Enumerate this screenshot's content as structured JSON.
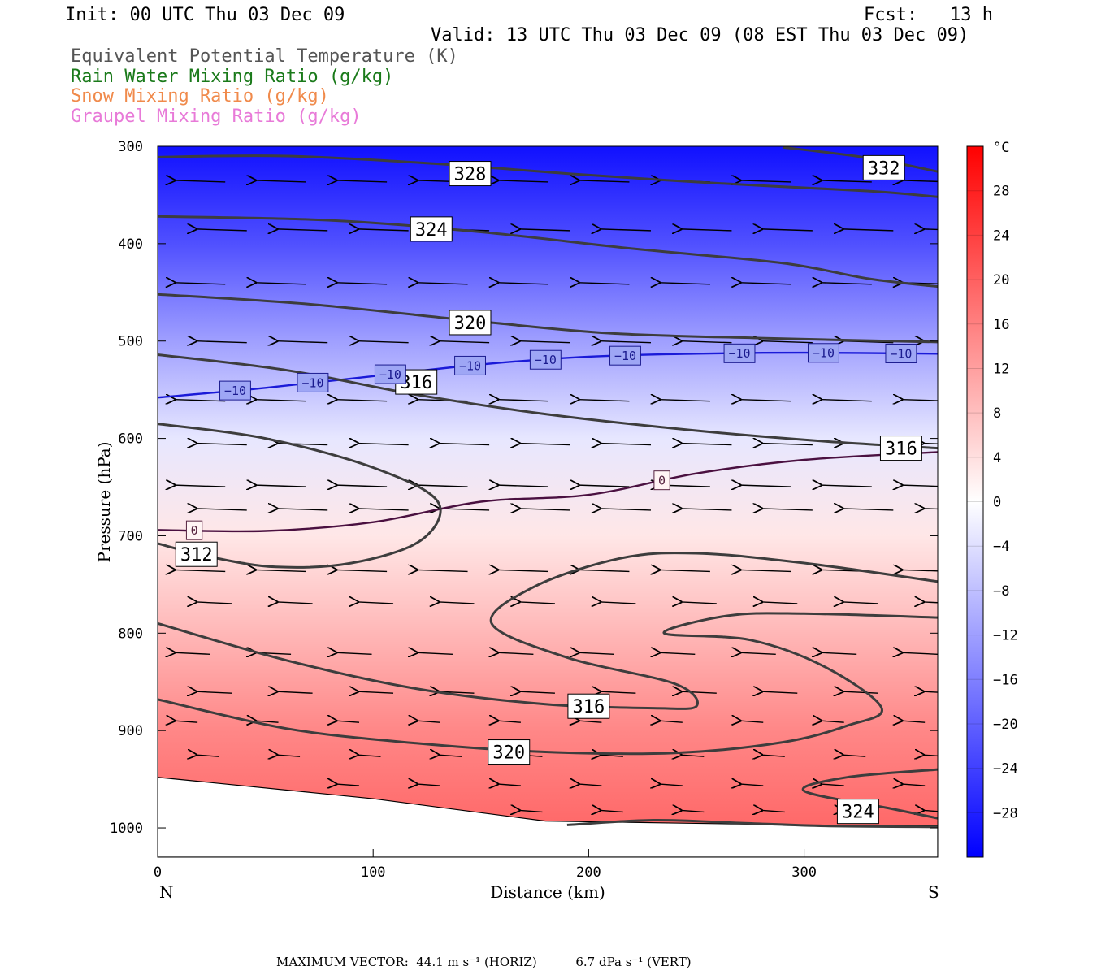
{
  "header": {
    "init": "Init: 00 UTC Thu 03 Dec 09",
    "fcst": "Fcst:   13 h",
    "valid": "Valid: 13 UTC Thu 03 Dec 09 (08 EST Thu 03 Dec 09)"
  },
  "legend_titles": [
    {
      "text": "Equivalent Potential Temperature (K)",
      "color": "#555555"
    },
    {
      "text": "Rain Water Mixing Ratio (g/kg)",
      "color": "#1a7a1a"
    },
    {
      "text": "Snow Mixing Ratio (g/kg)",
      "color": "#f08a4b"
    },
    {
      "text": "Graupel Mixing Ratio (g/kg)",
      "color": "#e87ad8"
    }
  ],
  "footer": {
    "label": "MAXIMUM VECTOR:",
    "horiz": "44.1 m s⁻¹ (HORIZ)",
    "vert": "6.7 dPa s⁻¹ (VERT)"
  },
  "chart_data": {
    "type": "heatmap",
    "description_fields": "filled temperature (degC) with theta-e contours (K), 0/-10 degC isotherms and wind vectors",
    "xlabel": "Distance (km)",
    "ylabel": "Pressure (hPa)",
    "xlim": [
      0,
      362
    ],
    "ylim": [
      1030,
      300
    ],
    "x_ticks": [
      0,
      100,
      200,
      300
    ],
    "y_ticks": [
      300,
      400,
      500,
      600,
      700,
      800,
      900,
      1000
    ],
    "x_end_labels": {
      "left": "N",
      "right": "S"
    },
    "colorbar": {
      "unit": "°C",
      "range": [
        -32,
        32
      ],
      "tick_values": [
        28,
        24,
        20,
        16,
        12,
        8,
        4,
        0,
        -4,
        -8,
        -12,
        -16,
        -20,
        -24,
        -28
      ],
      "tick_labels": [
        "28",
        "24",
        "20",
        "16",
        "12",
        "8",
        "4",
        "0",
        "−4",
        "−8",
        "−12",
        "−16",
        "−20",
        "−24",
        "−28"
      ],
      "cold_color": "#0000ff",
      "warm_color": "#ff0000"
    },
    "temperature_profile": [
      {
        "p": 300,
        "t": -30
      },
      {
        "p": 400,
        "t": -22
      },
      {
        "p": 500,
        "t": -12
      },
      {
        "p": 600,
        "t": -3
      },
      {
        "p": 700,
        "t": 3
      },
      {
        "p": 800,
        "t": 9
      },
      {
        "p": 900,
        "t": 15
      },
      {
        "p": 1000,
        "t": 19
      }
    ],
    "theta_e_contours": [
      {
        "label": "328",
        "points": [
          [
            0,
            311
          ],
          [
            60,
            310
          ],
          [
            130,
            318
          ],
          [
            190,
            328
          ],
          [
            260,
            338
          ],
          [
            330,
            346
          ],
          [
            362,
            352
          ]
        ]
      },
      {
        "label": "332",
        "points": [
          [
            290,
            301
          ],
          [
            330,
            312
          ],
          [
            362,
            326
          ]
        ]
      },
      {
        "label": "324",
        "points": [
          [
            0,
            372
          ],
          [
            80,
            376
          ],
          [
            150,
            388
          ],
          [
            220,
            405
          ],
          [
            290,
            420
          ],
          [
            330,
            436
          ],
          [
            362,
            444
          ]
        ]
      },
      {
        "label": "320",
        "points": [
          [
            0,
            452
          ],
          [
            70,
            462
          ],
          [
            150,
            480
          ],
          [
            210,
            492
          ],
          [
            280,
            497
          ],
          [
            362,
            501
          ]
        ]
      },
      {
        "label": "316",
        "points": [
          [
            0,
            514
          ],
          [
            60,
            530
          ],
          [
            120,
            555
          ],
          [
            180,
            575
          ],
          [
            250,
            592
          ],
          [
            310,
            603
          ],
          [
            362,
            610
          ]
        ]
      },
      {
        "label": "312",
        "points": [
          [
            0,
            585
          ],
          [
            50,
            600
          ],
          [
            100,
            630
          ],
          [
            130,
            665
          ],
          [
            122,
            705
          ],
          [
            90,
            728
          ],
          [
            55,
            732
          ],
          [
            25,
            722
          ],
          [
            0,
            708
          ]
        ]
      },
      {
        "label": "316",
        "points": [
          [
            0,
            790
          ],
          [
            60,
            828
          ],
          [
            120,
            857
          ],
          [
            180,
            873
          ],
          [
            230,
            877
          ],
          [
            250,
            875
          ],
          [
            240,
            852
          ],
          [
            190,
            825
          ],
          [
            155,
            790
          ],
          [
            175,
            752
          ],
          [
            215,
            723
          ],
          [
            250,
            718
          ],
          [
            300,
            728
          ],
          [
            362,
            747
          ]
        ]
      },
      {
        "label": "320",
        "points": [
          [
            0,
            868
          ],
          [
            60,
            898
          ],
          [
            120,
            913
          ],
          [
            180,
            922
          ],
          [
            240,
            923
          ],
          [
            290,
            912
          ],
          [
            320,
            895
          ],
          [
            336,
            877
          ],
          [
            310,
            835
          ],
          [
            275,
            807
          ],
          [
            235,
            800
          ],
          [
            265,
            782
          ],
          [
            300,
            780
          ],
          [
            362,
            784
          ]
        ]
      },
      {
        "label": "324",
        "points": [
          [
            362,
            940
          ],
          [
            320,
            948
          ],
          [
            300,
            962
          ],
          [
            340,
            980
          ],
          [
            362,
            990
          ]
        ]
      }
    ],
    "ground_contour": {
      "label": "",
      "points": [
        [
          190,
          997
        ],
        [
          230,
          992
        ],
        [
          270,
          995
        ],
        [
          310,
          998
        ],
        [
          362,
          999
        ]
      ]
    },
    "isotherm_minus10": {
      "label": "−10",
      "color": "#1a1ad8",
      "points": [
        [
          0,
          558
        ],
        [
          50,
          548
        ],
        [
          100,
          536
        ],
        [
          150,
          524
        ],
        [
          200,
          516
        ],
        [
          250,
          513
        ],
        [
          300,
          512
        ],
        [
          362,
          513
        ]
      ],
      "label_x": [
        36,
        72,
        108,
        145,
        180,
        217,
        270,
        309,
        345
      ]
    },
    "isotherm_zero": {
      "label": "0",
      "color": "#4a1040",
      "points": [
        [
          0,
          694
        ],
        [
          50,
          695
        ],
        [
          100,
          686
        ],
        [
          150,
          665
        ],
        [
          200,
          658
        ],
        [
          250,
          636
        ],
        [
          300,
          622
        ],
        [
          362,
          614
        ]
      ],
      "label_x": [
        17,
        234
      ]
    },
    "terrain_boundary": [
      [
        0,
        948
      ],
      [
        100,
        970
      ],
      [
        180,
        993
      ],
      [
        240,
        995
      ],
      [
        300,
        997
      ],
      [
        362,
        998
      ]
    ],
    "wind_vectors": {
      "levels_hpa": [
        335,
        385,
        440,
        500,
        560,
        605,
        648,
        672,
        735,
        768,
        820,
        860,
        890,
        925,
        955,
        982
      ],
      "magnitude_m_s": 44.1
    }
  }
}
